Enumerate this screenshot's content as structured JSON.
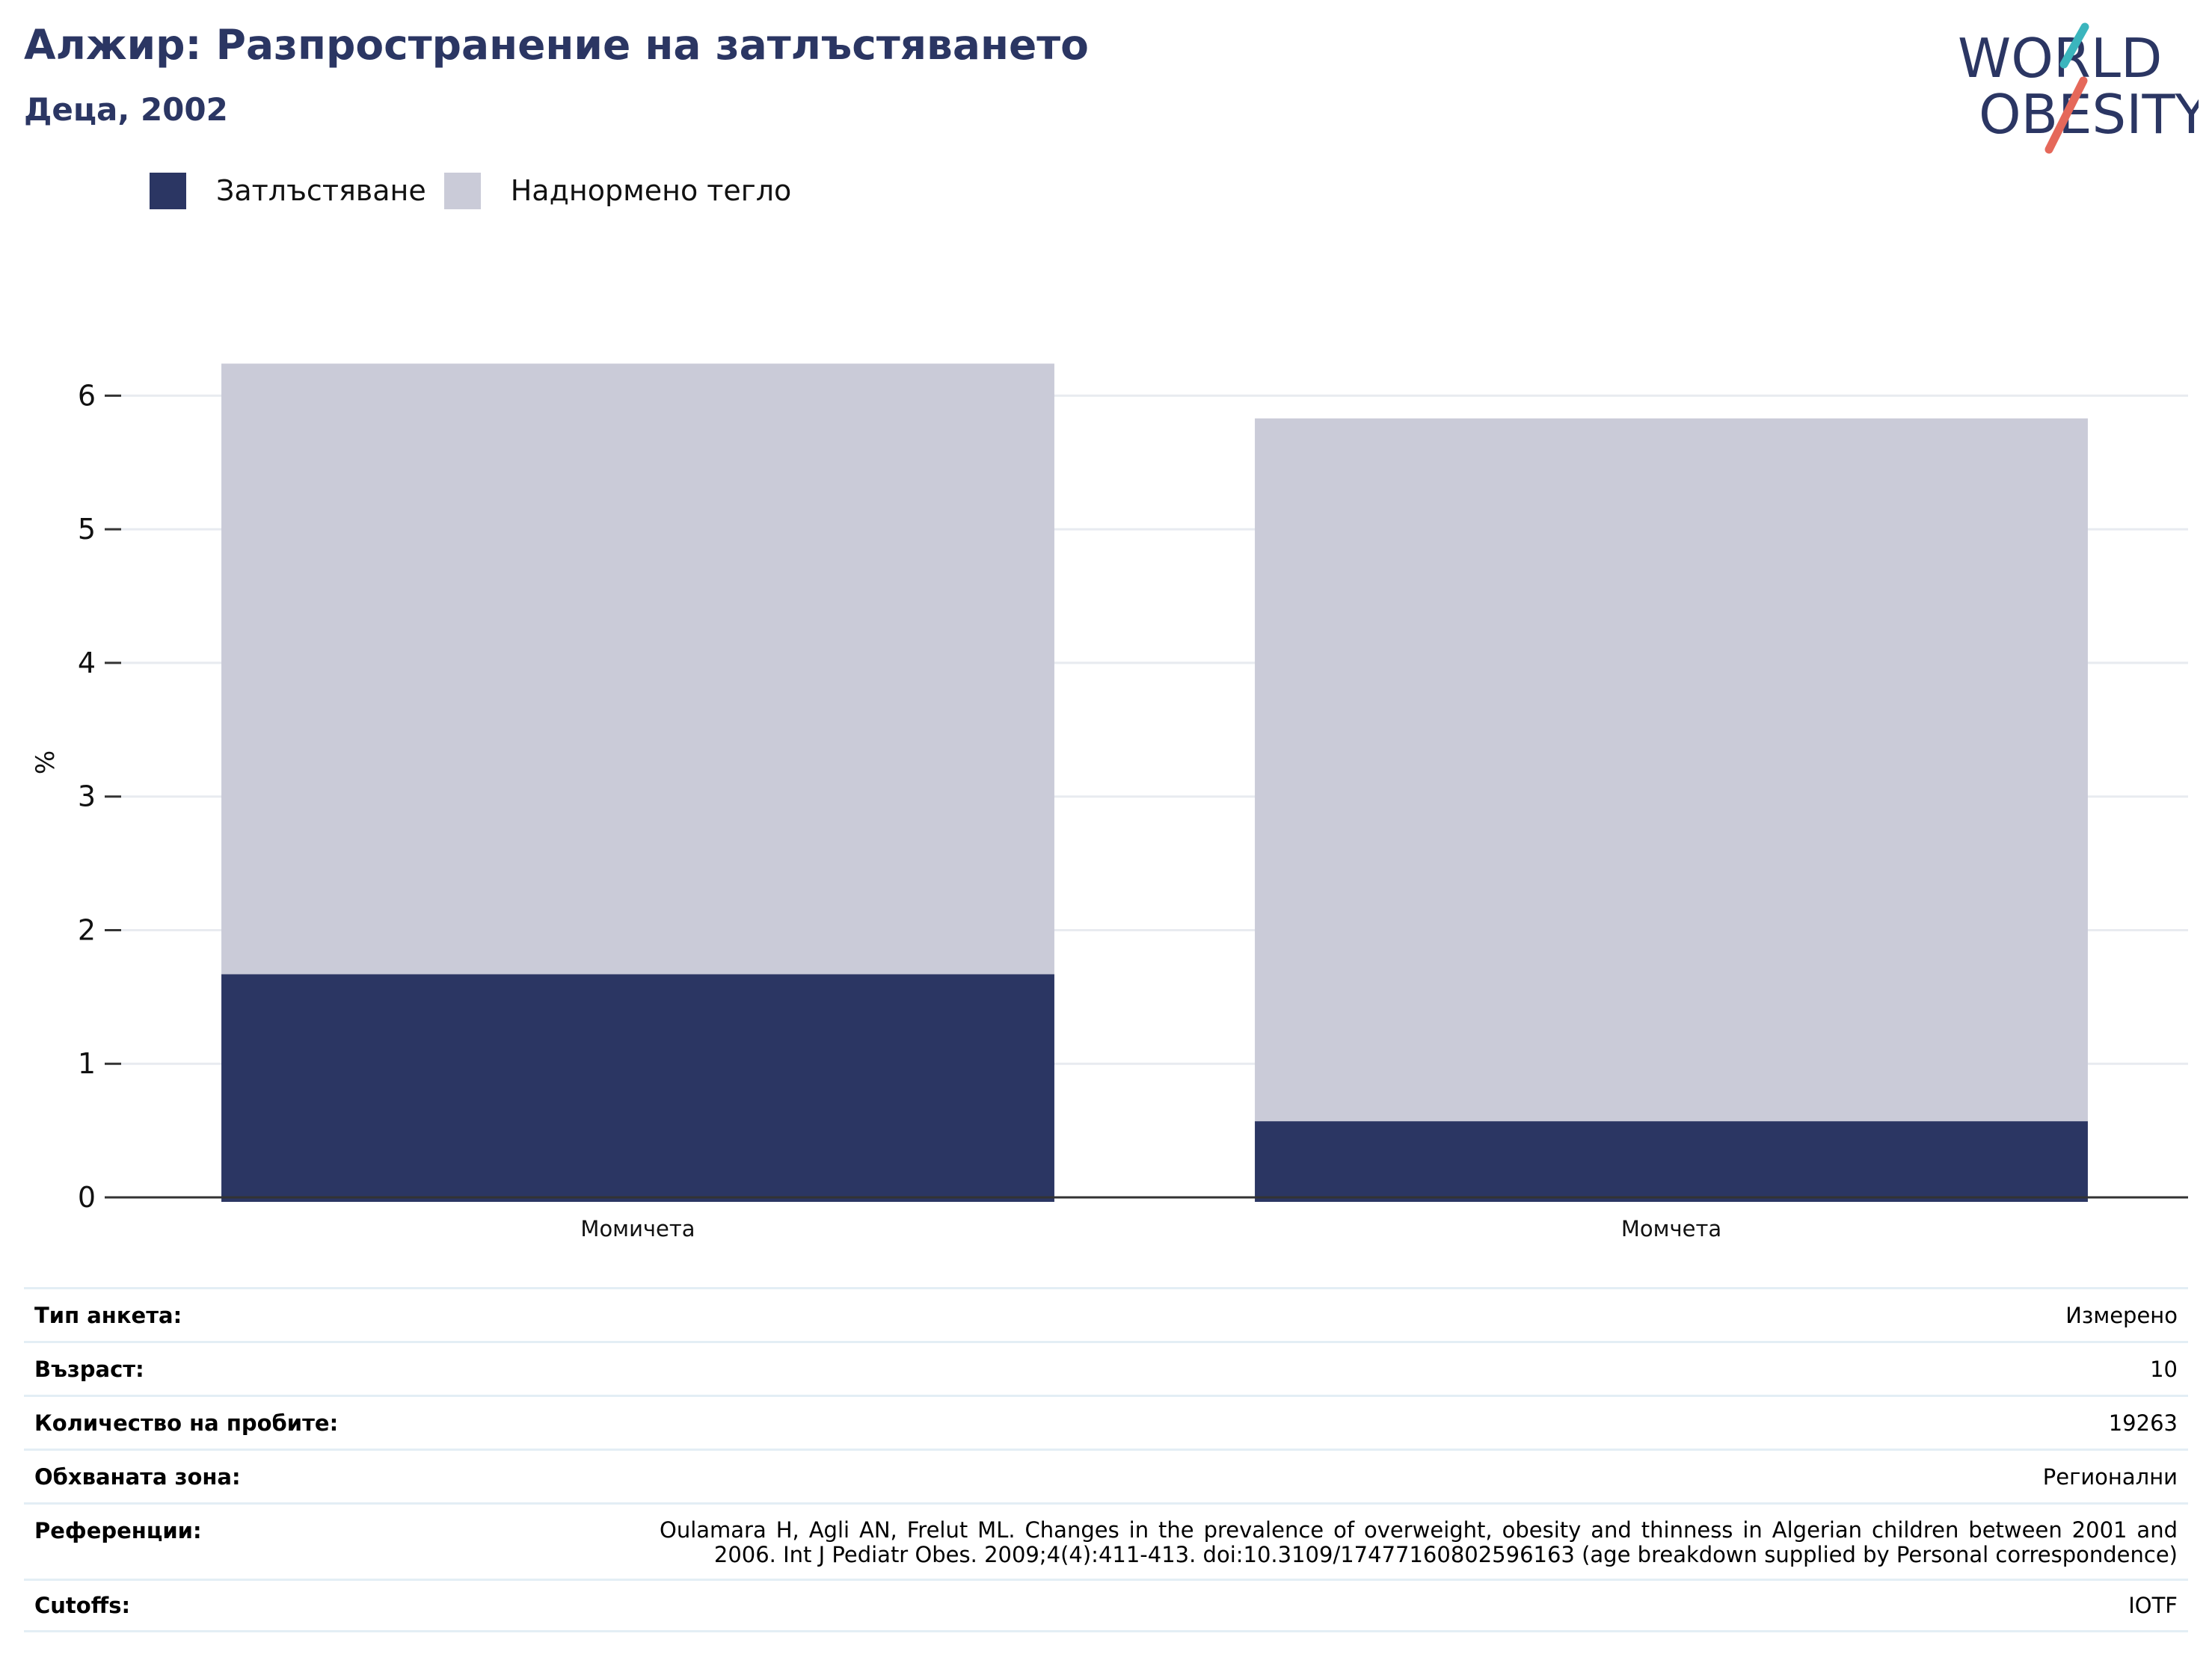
{
  "title": "Алжир: Разпространение на затлъстяването",
  "subtitle": "Деца, 2002",
  "logo": {
    "line1": "WORLD",
    "line2": "OBESITY"
  },
  "legend": [
    {
      "label": "Затлъстяване",
      "color": "#2b3663"
    },
    {
      "label": "Наднормено тегло",
      "color": "#cacbd8"
    }
  ],
  "chart_data": {
    "type": "bar",
    "stacked": true,
    "categories": [
      "Момичета",
      "Момчета"
    ],
    "series": [
      {
        "name": "Затлъстяване",
        "color": "#2b3663",
        "values": [
          1.67,
          0.57
        ]
      },
      {
        "name": "Наднормено тегло",
        "color": "#cacbd8",
        "values": [
          4.57,
          5.26
        ]
      }
    ],
    "ylabel": "%",
    "ylim": [
      0,
      6.5
    ],
    "yticks": [
      0,
      1,
      2,
      3,
      4,
      5,
      6
    ],
    "grid": true,
    "legend_position": "top-left"
  },
  "meta": [
    {
      "key": "Тип анкета:",
      "value": "Измерено"
    },
    {
      "key": "Възраст:",
      "value": "10"
    },
    {
      "key": "Количество на пробите:",
      "value": "19263"
    },
    {
      "key": "Обхваната зона:",
      "value": "Регионални"
    },
    {
      "key": "Референции:",
      "value": "Oulamara H, Agli AN, Frelut ML. Changes in the prevalence of overweight, obesity and thinness in Algerian children between 2001 and 2006. Int J Pediatr Obes. 2009;4(4):411-413. doi:10.3109/17477160802596163 (age breakdown supplied by Personal correspondence)"
    },
    {
      "key": "Cutoffs:",
      "value": "IOTF"
    }
  ]
}
